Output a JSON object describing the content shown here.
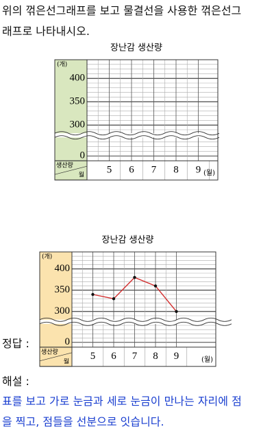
{
  "question": [
    "위의 꺾은선그래프를 보고 물결선을 사용한 꺾은선그",
    "래프로 나타내시오."
  ],
  "answer_label": "정답 :",
  "explanation_label": "해설 :",
  "explanation": [
    "표를 보고 가로 눈금과 세로 눈금이 만나는 자리에 점",
    "을 찍고, 점들을 선분으로 잇습니다."
  ],
  "chart_data": [
    {
      "type": "blank",
      "title": "장난감 생산량",
      "y_label": "(개)",
      "x_unit": "(월)",
      "corner_labels": [
        "생산량",
        "월"
      ],
      "categories": [
        "5",
        "6",
        "7",
        "8",
        "9"
      ],
      "ylim": [
        0,
        440
      ],
      "yticks": [
        0,
        300,
        350,
        400
      ],
      "axis_break": true,
      "grid": true,
      "panel_color": "#d9e7bf"
    },
    {
      "type": "line",
      "title": "장난감 생산량",
      "y_label": "(개)",
      "x_unit": "(월)",
      "corner_labels": [
        "생산량",
        "월"
      ],
      "categories": [
        "5",
        "6",
        "7",
        "8",
        "9"
      ],
      "series": [
        {
          "color": "#d32f2f",
          "values": [
            340,
            330,
            380,
            360,
            300
          ]
        }
      ],
      "ylim": [
        0,
        440
      ],
      "yticks": [
        0,
        300,
        350,
        400
      ],
      "axis_break": true,
      "grid": true,
      "panel_color": "#fbe3ae"
    }
  ]
}
